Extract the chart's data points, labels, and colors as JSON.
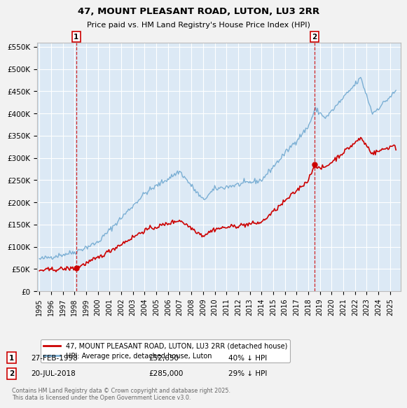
{
  "title": "47, MOUNT PLEASANT ROAD, LUTON, LU3 2RR",
  "subtitle": "Price paid vs. HM Land Registry's House Price Index (HPI)",
  "background_color": "#f2f2f2",
  "plot_bg_color": "#dce9f5",
  "grid_color": "#ffffff",
  "hpi_color": "#7bafd4",
  "price_color": "#cc0000",
  "marker_color": "#cc0000",
  "vline_color": "#cc0000",
  "legend_label_price": "47, MOUNT PLEASANT ROAD, LUTON, LU3 2RR (detached house)",
  "legend_label_hpi": "HPI: Average price, detached house, Luton",
  "annotation1_label": "1",
  "annotation2_label": "2",
  "sale1_date": "27-FEB-1998",
  "sale1_price": "£52,650",
  "sale1_hpi": "40% ↓ HPI",
  "sale2_date": "20-JUL-2018",
  "sale2_price": "£285,000",
  "sale2_hpi": "29% ↓ HPI",
  "footer": "Contains HM Land Registry data © Crown copyright and database right 2025.\nThis data is licensed under the Open Government Licence v3.0.",
  "ylim": [
    0,
    560000
  ],
  "yticks": [
    0,
    50000,
    100000,
    150000,
    200000,
    250000,
    300000,
    350000,
    400000,
    450000,
    500000,
    550000
  ],
  "ytick_labels": [
    "£0",
    "£50K",
    "£100K",
    "£150K",
    "£200K",
    "£250K",
    "£300K",
    "£350K",
    "£400K",
    "£450K",
    "£500K",
    "£550K"
  ],
  "sale1_x": 1998.15,
  "sale1_y": 52650,
  "sale2_x": 2018.55,
  "sale2_y": 285000,
  "xlim_left": 1994.8,
  "xlim_right": 2025.9
}
